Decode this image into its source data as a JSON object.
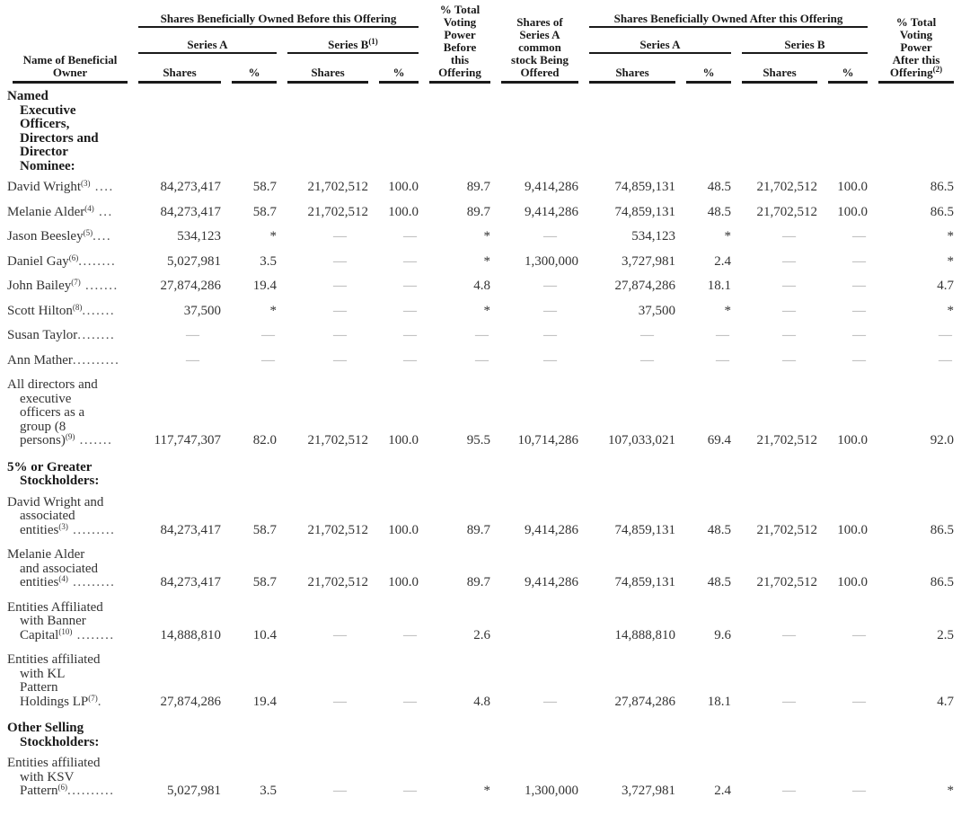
{
  "colors": {
    "text": "#333333",
    "header_text": "#1a1a1a",
    "dash": "#a6a6a6",
    "rule": "#1a1a1a",
    "background": "#ffffff"
  },
  "table": {
    "header": {
      "name_col": "Name of Beneficial\nOwner",
      "before_group": "Shares Beneficially Owned Before this Offering",
      "after_group": "Shares Beneficially Owned After this Offering",
      "series_a_before": "Series A",
      "series_b_before": "Series B",
      "series_b_before_sup": "(1)",
      "series_a_after": "Series A",
      "series_b_after": "Series B",
      "shares_label": "Shares",
      "pct_label": "%",
      "voting_before": "% Total\nVoting\nPower\nBefore\nthis\nOffering",
      "offered": "Shares of\nSeries A\ncommon\nstock Being\nOffered",
      "voting_after": "% Total\nVoting\nPower\nAfter this\nOffering",
      "voting_after_sup": "(2)"
    },
    "rows": [
      {
        "type": "section",
        "name": "Named\nExecutive\nOfficers,\nDirectors and\nDirector\nNominee:"
      },
      {
        "type": "data",
        "name": "David Wright",
        "sup": "(3)",
        "dots": " ....",
        "values": [
          "84,273,417",
          "58.7",
          "21,702,512",
          "100.0",
          "89.7",
          "9,414,286",
          "74,859,131",
          "48.5",
          "21,702,512",
          "100.0",
          "86.5"
        ]
      },
      {
        "type": "data",
        "name": "Melanie Alder",
        "sup": "(4)",
        "dots": " ...",
        "values": [
          "84,273,417",
          "58.7",
          "21,702,512",
          "100.0",
          "89.7",
          "9,414,286",
          "74,859,131",
          "48.5",
          "21,702,512",
          "100.0",
          "86.5"
        ]
      },
      {
        "type": "data",
        "name": "Jason Beesley",
        "sup": "(5)",
        "dots": "....",
        "values": [
          "534,123",
          "*",
          "—",
          "—",
          "*",
          "—",
          "534,123",
          "*",
          "—",
          "—",
          "*"
        ]
      },
      {
        "type": "data",
        "name": "Daniel Gay",
        "sup": "(6)",
        "dots": "........",
        "values": [
          "5,027,981",
          "3.5",
          "—",
          "—",
          "*",
          "1,300,000",
          "3,727,981",
          "2.4",
          "—",
          "—",
          "*"
        ]
      },
      {
        "type": "data",
        "name": "John Bailey",
        "sup": "(7)",
        "dots": " .......",
        "values": [
          "27,874,286",
          "19.4",
          "—",
          "—",
          "4.8",
          "—",
          "27,874,286",
          "18.1",
          "—",
          "—",
          "4.7"
        ]
      },
      {
        "type": "data",
        "name": "Scott Hilton",
        "sup": "(8)",
        "dots": ".......",
        "values": [
          "37,500",
          "*",
          "—",
          "—",
          "*",
          "—",
          "37,500",
          "*",
          "—",
          "—",
          "*"
        ]
      },
      {
        "type": "data",
        "name": "Susan Taylor",
        "sup": "",
        "dots": "........",
        "values": [
          "—",
          "—",
          "—",
          "—",
          "—",
          "—",
          "—",
          "—",
          "—",
          "—",
          "—"
        ]
      },
      {
        "type": "data",
        "name": "Ann Mather",
        "sup": "",
        "dots": "..........",
        "values": [
          "—",
          "—",
          "—",
          "—",
          "—",
          "—",
          "—",
          "—",
          "—",
          "—",
          "—"
        ]
      },
      {
        "type": "data",
        "name": "All directors and\nexecutive\nofficers as a\ngroup (8\npersons)",
        "sup": "(9)",
        "dots": " .......",
        "values": [
          "117,747,307",
          "82.0",
          "21,702,512",
          "100.0",
          "95.5",
          "10,714,286",
          "107,033,021",
          "69.4",
          "21,702,512",
          "100.0",
          "92.0"
        ]
      },
      {
        "type": "section",
        "name": "5% or Greater\nStockholders:"
      },
      {
        "type": "data",
        "name": "David Wright and\nassociated\nentities",
        "sup": "(3)",
        "dots": " .........",
        "values": [
          "84,273,417",
          "58.7",
          "21,702,512",
          "100.0",
          "89.7",
          "9,414,286",
          "74,859,131",
          "48.5",
          "21,702,512",
          "100.0",
          "86.5"
        ]
      },
      {
        "type": "data",
        "name": "Melanie Alder\nand associated\nentities",
        "sup": "(4)",
        "dots": " .........",
        "values": [
          "84,273,417",
          "58.7",
          "21,702,512",
          "100.0",
          "89.7",
          "9,414,286",
          "74,859,131",
          "48.5",
          "21,702,512",
          "100.0",
          "86.5"
        ]
      },
      {
        "type": "data",
        "name": "Entities Affiliated\nwith Banner\nCapital",
        "sup": "(10)",
        "dots": " ........",
        "values": [
          "14,888,810",
          "10.4",
          "—",
          "—",
          "2.6",
          "",
          "14,888,810",
          "9.6",
          "—",
          "—",
          "2.5"
        ]
      },
      {
        "type": "data",
        "name": "Entities affiliated\nwith KL\nPattern\nHoldings LP",
        "sup": "(7)",
        "dots": ".",
        "values": [
          "27,874,286",
          "19.4",
          "—",
          "—",
          "4.8",
          "—",
          "27,874,286",
          "18.1",
          "—",
          "—",
          "4.7"
        ]
      },
      {
        "type": "section",
        "name": "Other Selling\nStockholders:"
      },
      {
        "type": "data",
        "name": "Entities affiliated\nwith KSV\nPattern",
        "sup": "(6)",
        "dots": "..........",
        "values": [
          "5,027,981",
          "3.5",
          "—",
          "—",
          "*",
          "1,300,000",
          "3,727,981",
          "2.4",
          "—",
          "—",
          "*"
        ]
      }
    ]
  }
}
